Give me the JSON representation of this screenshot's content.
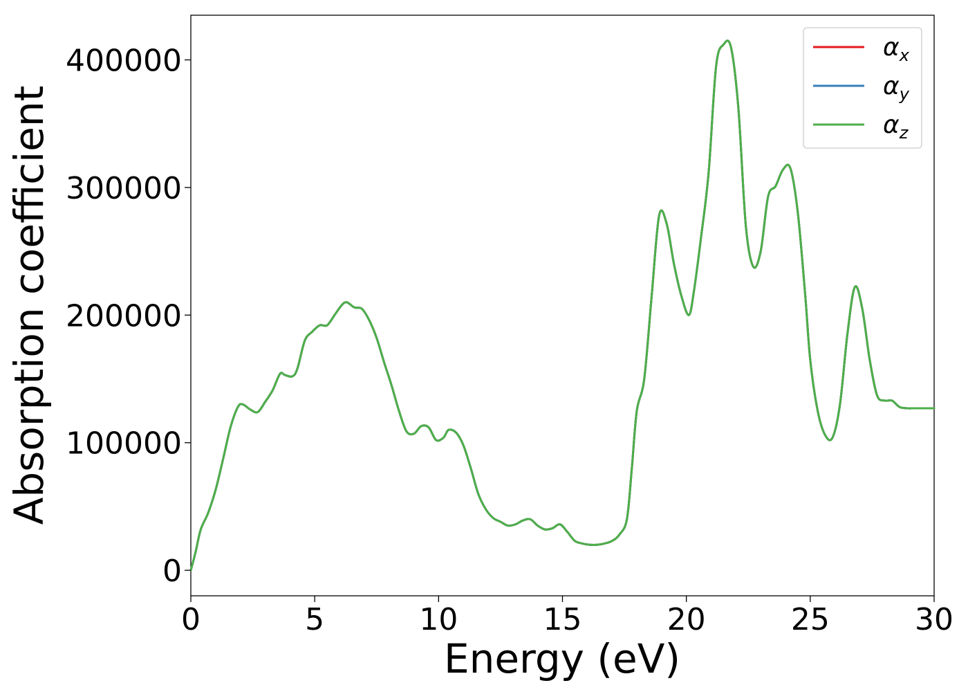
{
  "chart_data": {
    "type": "line",
    "xlabel": "Energy (eV)",
    "ylabel": "Absorption coefficient",
    "xlim": [
      0,
      30
    ],
    "ylim": [
      -20000,
      435000
    ],
    "xticks": [
      "0",
      "5",
      "10",
      "15",
      "20",
      "25",
      "30"
    ],
    "xtick_values": [
      0,
      5,
      10,
      15,
      20,
      25,
      30
    ],
    "yticks": [
      "0",
      "100000",
      "200000",
      "300000",
      "400000"
    ],
    "ytick_values": [
      0,
      100000,
      200000,
      300000,
      400000
    ],
    "grid": false,
    "legend_placement": "top-right",
    "series": [
      {
        "name": "α_x",
        "legend_base": "α",
        "legend_sub": "x",
        "color": "#e41a1c"
      },
      {
        "name": "α_y",
        "legend_base": "α",
        "legend_sub": "y",
        "color": "#377eb8"
      },
      {
        "name": "α_z",
        "legend_base": "α",
        "legend_sub": "z",
        "color": "#4daf4a"
      }
    ],
    "x": [
      0,
      0.2,
      0.4,
      0.7,
      1.0,
      1.3,
      1.6,
      1.9,
      2.1,
      2.4,
      2.7,
      3.0,
      3.3,
      3.6,
      3.8,
      4.1,
      4.3,
      4.6,
      4.9,
      5.2,
      5.5,
      5.8,
      6.1,
      6.3,
      6.6,
      6.9,
      7.2,
      7.5,
      7.8,
      8.1,
      8.4,
      8.7,
      9.0,
      9.3,
      9.6,
      9.9,
      10.2,
      10.4,
      10.7,
      11.0,
      11.3,
      11.6,
      11.9,
      12.2,
      12.5,
      12.8,
      13.1,
      13.4,
      13.7,
      14.0,
      14.3,
      14.6,
      14.9,
      15.2,
      15.5,
      15.8,
      16.1,
      16.4,
      16.7,
      17.0,
      17.3,
      17.6,
      17.8,
      18.0,
      18.3,
      18.6,
      18.9,
      19.2,
      19.5,
      19.8,
      20.1,
      20.3,
      20.6,
      20.9,
      21.2,
      21.5,
      21.8,
      22.1,
      22.4,
      22.7,
      23.0,
      23.3,
      23.6,
      23.9,
      24.2,
      24.5,
      24.8,
      25.0,
      25.3,
      25.6,
      25.9,
      26.2,
      26.5,
      26.8,
      27.1,
      27.4,
      27.7,
      28.0,
      28.3,
      28.6,
      28.9,
      29.2,
      29.5,
      29.8,
      30.0
    ],
    "y": [
      0,
      15000,
      32000,
      45000,
      63000,
      87000,
      112000,
      128000,
      130000,
      126000,
      124000,
      132000,
      141000,
      154000,
      153000,
      152000,
      158000,
      180000,
      187000,
      192000,
      192000,
      200000,
      208000,
      210000,
      206000,
      205000,
      196000,
      182000,
      163000,
      145000,
      125000,
      109000,
      107000,
      113000,
      112000,
      102000,
      104000,
      110000,
      108000,
      98000,
      80000,
      60000,
      48000,
      41000,
      38000,
      35000,
      36000,
      39000,
      40000,
      35000,
      32000,
      33000,
      36000,
      30000,
      23000,
      21000,
      20000,
      20000,
      21000,
      23000,
      28000,
      40000,
      80000,
      125000,
      150000,
      215000,
      278000,
      272000,
      240000,
      215000,
      200000,
      218000,
      262000,
      312000,
      395000,
      412000,
      410000,
      362000,
      270000,
      238000,
      250000,
      293000,
      301000,
      314000,
      315000,
      280000,
      215000,
      165000,
      125000,
      106000,
      104000,
      130000,
      185000,
      222000,
      205000,
      165000,
      137000,
      133000,
      133000,
      128000,
      127000,
      127000,
      127000,
      127000,
      127000
    ]
  }
}
